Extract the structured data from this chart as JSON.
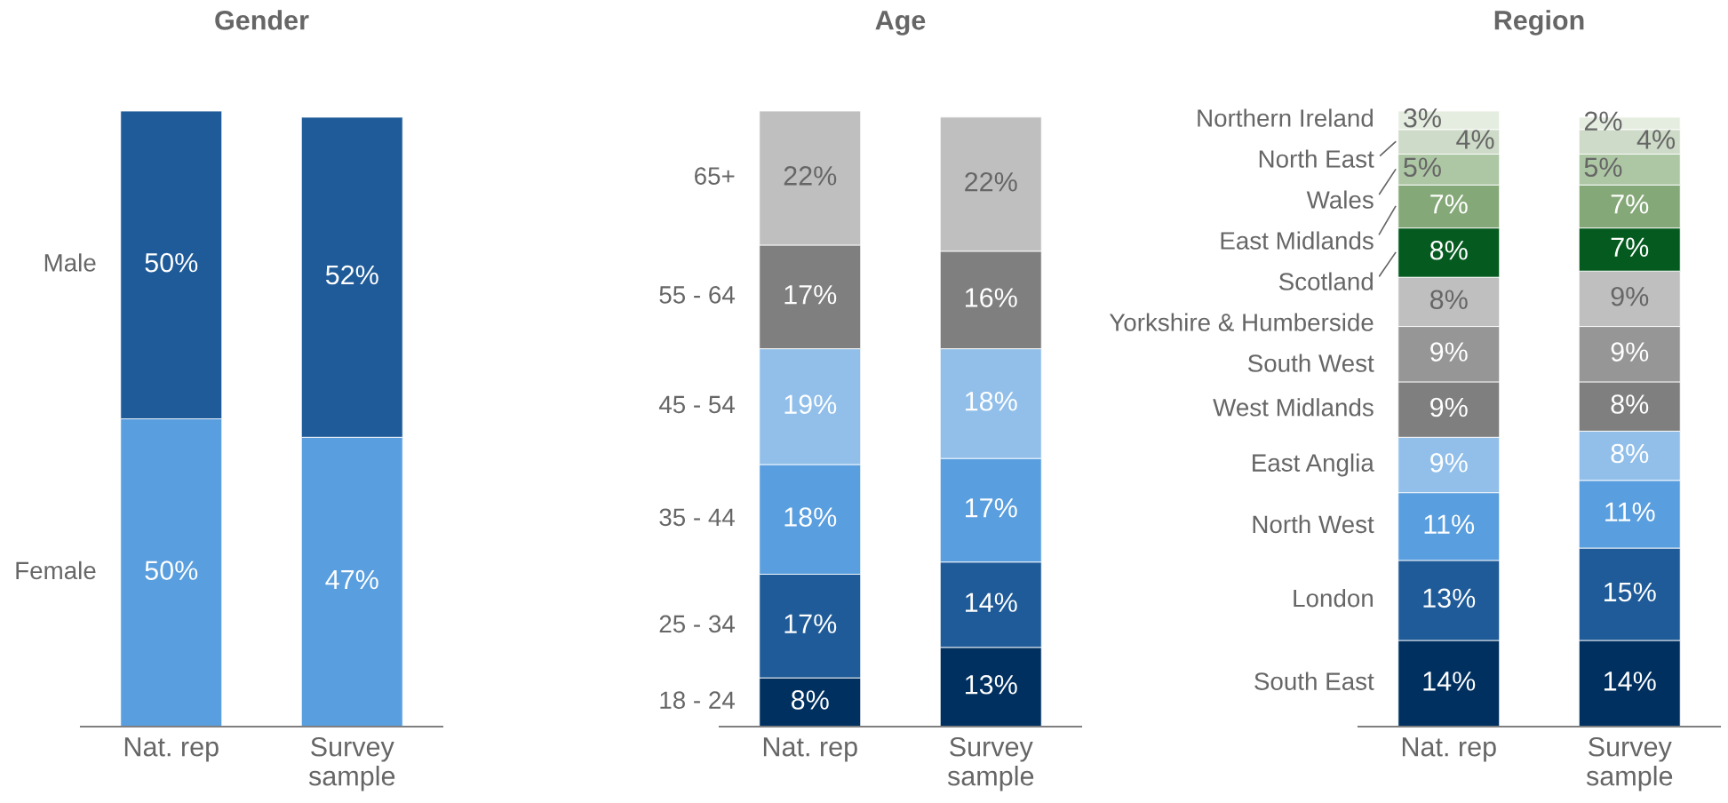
{
  "chart_data": [
    {
      "type": "bar",
      "stacked": true,
      "title": "Gender",
      "categories": [
        "Nat. rep",
        "Survey sample"
      ],
      "tick_labels": "x",
      "series": [
        {
          "name": "Female",
          "color": "#599ede",
          "values": [
            50,
            47
          ],
          "value_labels": [
            "50%",
            "47%"
          ]
        },
        {
          "name": "Male",
          "color": "#1f5b98",
          "values": [
            50,
            52
          ],
          "value_labels": [
            "50%",
            "52%"
          ]
        }
      ]
    },
    {
      "type": "bar",
      "stacked": true,
      "title": "Age",
      "categories": [
        "Nat. rep",
        "Survey sample"
      ],
      "tick_labels": "x",
      "series": [
        {
          "name": "18 - 24",
          "color": "#003060",
          "values": [
            8,
            13
          ],
          "value_labels": [
            "8%",
            "13%"
          ]
        },
        {
          "name": "25 - 34",
          "color": "#1f5b98",
          "values": [
            17,
            14
          ],
          "value_labels": [
            "17%",
            "14%"
          ]
        },
        {
          "name": "35 - 44",
          "color": "#599ede",
          "values": [
            18,
            17
          ],
          "value_labels": [
            "18%",
            "17%"
          ]
        },
        {
          "name": "45 - 54",
          "color": "#91bfea",
          "values": [
            19,
            18
          ],
          "value_labels": [
            "19%",
            "18%"
          ]
        },
        {
          "name": "55 - 64",
          "color": "#7f7f7f",
          "values": [
            17,
            16
          ],
          "value_labels": [
            "17%",
            "16%"
          ]
        },
        {
          "name": "65+",
          "color": "#bfbfbf",
          "values": [
            22,
            22
          ],
          "value_labels": [
            "22%",
            "22%"
          ]
        }
      ]
    },
    {
      "type": "bar",
      "stacked": true,
      "title": "Region",
      "categories": [
        "Nat. rep",
        "Survey sample"
      ],
      "tick_labels": "x",
      "series": [
        {
          "name": "South East",
          "color": "#003060",
          "values": [
            14,
            14
          ],
          "value_labels": [
            "14%",
            "14%"
          ]
        },
        {
          "name": "London",
          "color": "#1f5b98",
          "values": [
            13,
            15
          ],
          "value_labels": [
            "13%",
            "15%"
          ]
        },
        {
          "name": "North West",
          "color": "#599ede",
          "values": [
            11,
            11
          ],
          "value_labels": [
            "11%",
            "11%"
          ]
        },
        {
          "name": "East Anglia",
          "color": "#91bfea",
          "values": [
            9,
            8
          ],
          "value_labels": [
            "9%",
            "8%"
          ]
        },
        {
          "name": "West Midlands",
          "color": "#7f7f7f",
          "values": [
            9,
            8
          ],
          "value_labels": [
            "9%",
            "8%"
          ]
        },
        {
          "name": "South West",
          "color": "#969696",
          "values": [
            9,
            9
          ],
          "value_labels": [
            "9%",
            "9%"
          ]
        },
        {
          "name": "Yorkshire & Humberside",
          "color": "#bfbfbf",
          "values": [
            8,
            9
          ],
          "value_labels": [
            "8%",
            "9%"
          ]
        },
        {
          "name": "Scotland",
          "color": "#055a1f",
          "values": [
            8,
            7
          ],
          "value_labels": [
            "8%",
            "7%"
          ]
        },
        {
          "name": "East Midlands",
          "color": "#85a878",
          "values": [
            7,
            7
          ],
          "value_labels": [
            "7%",
            "7%"
          ]
        },
        {
          "name": "Wales",
          "color": "#adc6a4",
          "values": [
            5,
            5
          ],
          "value_labels": [
            "5%",
            "5%"
          ]
        },
        {
          "name": "North East",
          "color": "#cedbc8",
          "values": [
            4,
            4
          ],
          "value_labels": [
            "4%",
            "4%"
          ]
        },
        {
          "name": "Northern Ireland",
          "color": "#e5ede0",
          "values": [
            3,
            2
          ],
          "value_labels": [
            "3%",
            "2%"
          ]
        }
      ]
    }
  ]
}
